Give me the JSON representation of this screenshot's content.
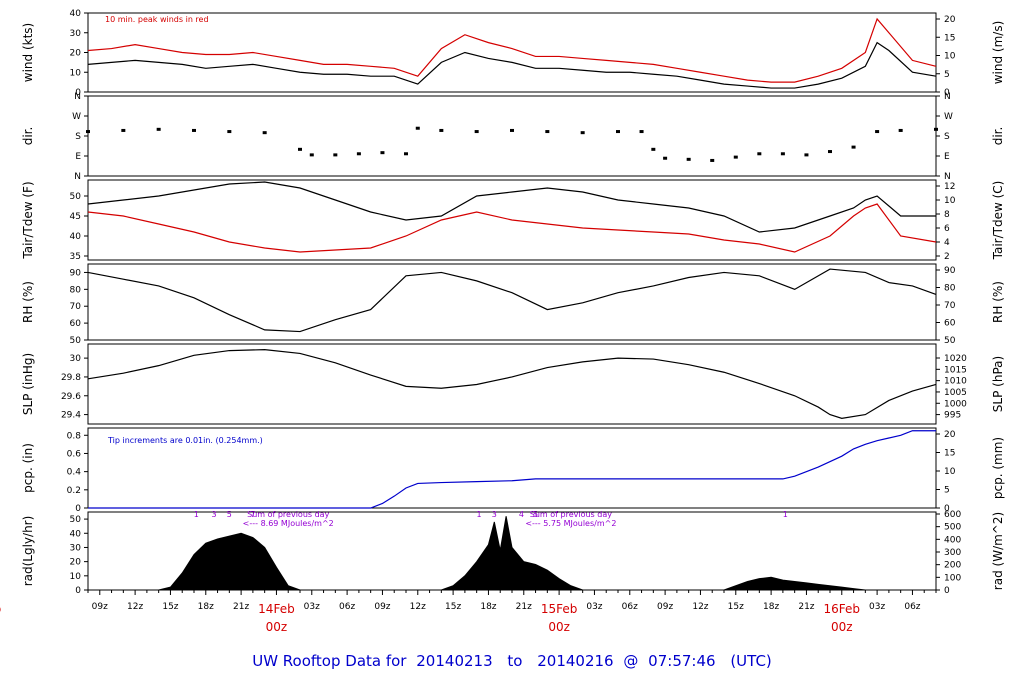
{
  "footer": {
    "prefix": "UW Rooftop Data for",
    "start": "20140213",
    "to_word": "to",
    "end": "20140216",
    "at": "@",
    "time": "07:57:46",
    "zone": "(UTC)"
  },
  "colors": {
    "black": "#000000",
    "red": "#d40000",
    "blue": "#0000cc",
    "purple": "#9400d3"
  },
  "x_axis": {
    "range_hours": [
      0,
      72
    ],
    "hour_tick_labels": [
      {
        "h": 1,
        "label": "09z"
      },
      {
        "h": 4,
        "label": "12z"
      },
      {
        "h": 7,
        "label": "15z"
      },
      {
        "h": 10,
        "label": "18z"
      },
      {
        "h": 13,
        "label": "21z"
      },
      {
        "h": 19,
        "label": "03z"
      },
      {
        "h": 22,
        "label": "06z"
      },
      {
        "h": 25,
        "label": "09z"
      },
      {
        "h": 28,
        "label": "12z"
      },
      {
        "h": 31,
        "label": "15z"
      },
      {
        "h": 34,
        "label": "18z"
      },
      {
        "h": 37,
        "label": "21z"
      },
      {
        "h": 43,
        "label": "03z"
      },
      {
        "h": 46,
        "label": "06z"
      },
      {
        "h": 49,
        "label": "09z"
      },
      {
        "h": 52,
        "label": "12z"
      },
      {
        "h": 55,
        "label": "15z"
      },
      {
        "h": 58,
        "label": "18z"
      },
      {
        "h": 61,
        "label": "21z"
      },
      {
        "h": 67,
        "label": "03z"
      },
      {
        "h": 70,
        "label": "06z"
      }
    ],
    "date_labels": [
      {
        "h": -8,
        "date": "eb",
        "time": "z"
      },
      {
        "h": 16,
        "date": "14Feb",
        "time": "00z"
      },
      {
        "h": 40,
        "date": "15Feb",
        "time": "00z"
      },
      {
        "h": 64,
        "date": "16Feb",
        "time": "00z"
      }
    ]
  },
  "chart_data": [
    {
      "type": "line",
      "panel": "wind",
      "ylabel": "wind (kts)",
      "ylabel_right": "wind (m/s)",
      "ylim": [
        0,
        40
      ],
      "yticks": [
        0,
        10,
        20,
        30,
        40
      ],
      "right_ticks": [
        0,
        5,
        10,
        15,
        20
      ],
      "annotation": "10 min. peak winds in red",
      "x": [
        0,
        2,
        4,
        6,
        8,
        10,
        12,
        14,
        16,
        18,
        20,
        22,
        24,
        26,
        28,
        30,
        32,
        34,
        36,
        38,
        40,
        42,
        44,
        46,
        48,
        50,
        52,
        54,
        56,
        58,
        60,
        62,
        64,
        66,
        67,
        68,
        70,
        72
      ],
      "series": [
        {
          "values": [
            14,
            15,
            16,
            15,
            14,
            12,
            13,
            14,
            12,
            10,
            9,
            9,
            8,
            8,
            4,
            15,
            20,
            17,
            15,
            12,
            12,
            11,
            10,
            10,
            9,
            8,
            6,
            4,
            3,
            2,
            2,
            4,
            7,
            13,
            25,
            21,
            10,
            8
          ]
        },
        {
          "values": [
            21,
            22,
            24,
            22,
            20,
            19,
            19,
            20,
            18,
            16,
            14,
            14,
            13,
            12,
            8,
            22,
            29,
            25,
            22,
            18,
            18,
            17,
            16,
            15,
            14,
            12,
            10,
            8,
            6,
            5,
            5,
            8,
            12,
            20,
            37,
            30,
            16,
            13
          ]
        }
      ]
    },
    {
      "type": "scatter",
      "panel": "dir",
      "ylabel": "dir.",
      "ylabel_right": "dir.",
      "ylim": [
        0,
        360
      ],
      "ytick_labels": [
        {
          "v": 0,
          "label": "N"
        },
        {
          "v": 90,
          "label": "E"
        },
        {
          "v": 180,
          "label": "S"
        },
        {
          "v": 270,
          "label": "W"
        },
        {
          "v": 360,
          "label": "N"
        }
      ],
      "x": [
        0,
        3,
        6,
        9,
        12,
        15,
        18,
        19,
        21,
        23,
        25,
        27,
        28,
        30,
        33,
        36,
        39,
        42,
        45,
        47,
        48,
        49,
        51,
        53,
        55,
        57,
        59,
        61,
        63,
        65,
        67,
        69,
        72
      ],
      "series": [
        {
          "values": [
            200,
            205,
            210,
            205,
            200,
            195,
            120,
            95,
            95,
            100,
            105,
            100,
            215,
            205,
            200,
            205,
            200,
            195,
            200,
            200,
            120,
            80,
            75,
            70,
            85,
            100,
            100,
            95,
            110,
            130,
            200,
            205,
            210
          ]
        }
      ]
    },
    {
      "type": "line",
      "panel": "temp",
      "ylabel": "Tair/Tdew (F)",
      "ylabel_right": "Tair/Tdew (C)",
      "ylim": [
        34,
        54
      ],
      "yticks": [
        35,
        40,
        45,
        50
      ],
      "right_ticks": [
        2,
        4,
        6,
        8,
        10,
        12
      ],
      "x": [
        0,
        3,
        6,
        9,
        12,
        15,
        18,
        21,
        24,
        27,
        30,
        33,
        36,
        39,
        42,
        45,
        48,
        51,
        54,
        57,
        60,
        63,
        65,
        66,
        67,
        69,
        72
      ],
      "series": [
        {
          "values": [
            48,
            49,
            50,
            51.5,
            53,
            53.5,
            52,
            49,
            46,
            44,
            45,
            50,
            51,
            52,
            51,
            49,
            48,
            47,
            45,
            41,
            42,
            45,
            47,
            49,
            50,
            45,
            45
          ]
        },
        {
          "values": [
            46,
            45,
            43,
            41,
            38.5,
            37,
            36,
            36.5,
            37,
            40,
            44,
            46,
            44,
            43,
            42,
            41.5,
            41,
            40.5,
            39,
            38,
            36,
            40,
            45,
            47,
            48,
            40,
            38.5
          ]
        }
      ]
    },
    {
      "type": "line",
      "panel": "rh",
      "ylabel": "RH (%)",
      "ylabel_right": "RH (%)",
      "ylim": [
        50,
        95
      ],
      "yticks": [
        50,
        60,
        70,
        80,
        90
      ],
      "right_ticks": [
        50,
        60,
        70,
        80,
        90
      ],
      "x": [
        0,
        3,
        6,
        9,
        12,
        15,
        18,
        21,
        24,
        27,
        30,
        33,
        36,
        39,
        42,
        45,
        48,
        51,
        54,
        57,
        60,
        63,
        66,
        68,
        70,
        72
      ],
      "series": [
        {
          "values": [
            90,
            86,
            82,
            75,
            65,
            56,
            55,
            62,
            68,
            88,
            90,
            85,
            78,
            68,
            72,
            78,
            82,
            87,
            90,
            88,
            80,
            92,
            90,
            84,
            82,
            77
          ]
        }
      ]
    },
    {
      "type": "line",
      "panel": "slp",
      "ylabel": "SLP (inHg)",
      "ylabel_right": "SLP (hPa)",
      "ylim": [
        29.3,
        30.15
      ],
      "yticks": [
        29.4,
        29.6,
        29.8,
        30.0
      ],
      "right_ticks": [
        995,
        1000,
        1005,
        1010,
        1015,
        1020
      ],
      "x": [
        0,
        3,
        6,
        9,
        12,
        15,
        18,
        21,
        24,
        27,
        30,
        33,
        36,
        39,
        42,
        45,
        48,
        51,
        54,
        57,
        60,
        62,
        63,
        64,
        66,
        68,
        70,
        72
      ],
      "series": [
        {
          "values": [
            29.78,
            29.84,
            29.92,
            30.03,
            30.08,
            30.09,
            30.05,
            29.95,
            29.82,
            29.7,
            29.68,
            29.72,
            29.8,
            29.9,
            29.96,
            30.0,
            29.99,
            29.93,
            29.85,
            29.73,
            29.6,
            29.48,
            29.4,
            29.36,
            29.4,
            29.55,
            29.65,
            29.72
          ]
        }
      ]
    },
    {
      "type": "line",
      "panel": "pcp",
      "ylabel": "pcp. (in)",
      "ylabel_right": "pcp. (mm)",
      "ylim": [
        0,
        0.88
      ],
      "yticks": [
        0.0,
        0.2,
        0.4,
        0.6,
        0.8
      ],
      "right_ticks": [
        0,
        5,
        10,
        15,
        20
      ],
      "annotation": "Tip increments are 0.01in. (0.254mm.)",
      "x": [
        0,
        24,
        25,
        26,
        27,
        28,
        30,
        33,
        36,
        38,
        40,
        44,
        48,
        52,
        56,
        59,
        60,
        62,
        64,
        65,
        66,
        67,
        68,
        69,
        70,
        72
      ],
      "series": [
        {
          "values": [
            0,
            0,
            0.05,
            0.13,
            0.22,
            0.27,
            0.28,
            0.29,
            0.3,
            0.32,
            0.32,
            0.32,
            0.32,
            0.32,
            0.32,
            0.32,
            0.35,
            0.45,
            0.57,
            0.65,
            0.7,
            0.74,
            0.77,
            0.8,
            0.85,
            0.85
          ]
        }
      ]
    },
    {
      "type": "area",
      "panel": "rad",
      "ylabel": "rad(Lgly/hr)",
      "ylabel_right": "rad (W/m^2)",
      "ylim": [
        0,
        55
      ],
      "yticks": [
        0,
        10,
        20,
        30,
        40,
        50
      ],
      "right_ticks": [
        0,
        100,
        200,
        300,
        400,
        500,
        600
      ],
      "x": [
        6,
        7,
        8,
        9,
        10,
        11,
        12,
        13,
        14,
        15,
        16,
        17,
        18,
        30,
        31,
        32,
        33,
        34,
        34.5,
        35,
        35.5,
        36,
        37,
        38,
        39,
        40,
        41,
        42,
        54,
        55,
        56,
        57,
        58,
        59,
        60,
        61,
        62,
        63,
        64,
        65,
        66
      ],
      "series": [
        {
          "values": [
            0,
            2,
            12,
            25,
            33,
            36,
            38,
            40,
            37,
            30,
            16,
            3,
            0,
            0,
            3,
            10,
            20,
            32,
            48,
            28,
            52,
            30,
            20,
            18,
            14,
            8,
            3,
            0,
            0,
            3,
            6,
            8,
            9,
            7,
            6,
            5,
            4,
            3,
            2,
            1,
            0
          ]
        }
      ],
      "annotations": [
        {
          "h": 17,
          "lines": [
            "Sum of previous day",
            "<--- 8.69 MJoules/m^2"
          ]
        },
        {
          "h": 41,
          "lines": [
            "Sum of previous day",
            "<--- 5.75 MJoules/m^2"
          ]
        }
      ],
      "hour_markers": [
        {
          "h": 9.2,
          "label": "1"
        },
        {
          "h": 10.7,
          "label": "3"
        },
        {
          "h": 12.0,
          "label": "5"
        },
        {
          "h": 14.0,
          "label": "7"
        },
        {
          "h": 33.2,
          "label": "1"
        },
        {
          "h": 34.5,
          "label": "3"
        },
        {
          "h": 36.8,
          "label": "4"
        },
        {
          "h": 38.0,
          "label": "5"
        },
        {
          "h": 59.2,
          "label": "1"
        }
      ]
    }
  ]
}
